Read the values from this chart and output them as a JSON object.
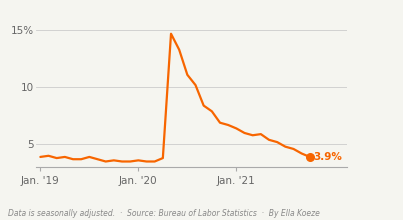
{
  "line_color": "#F76500",
  "background_color": "#f5f5f0",
  "x_tick_labels": [
    "Jan. '19",
    "Jan. '20",
    "Jan. '21"
  ],
  "x_tick_positions": [
    0,
    12,
    24
  ],
  "y_ticks": [
    5,
    10,
    15
  ],
  "y_tick_labels": [
    "5",
    "10",
    "15%"
  ],
  "end_label": "3.9%",
  "end_label_color": "#F76500",
  "footer": "Data is seasonally adjusted.  ·  Source: Bureau of Labor Statistics  ·  By Ella Koeze",
  "unemployment_data": [
    3.9,
    4.0,
    3.8,
    3.9,
    3.7,
    3.7,
    3.9,
    3.7,
    3.5,
    3.6,
    3.5,
    3.5,
    3.6,
    3.5,
    3.5,
    3.8,
    14.7,
    13.3,
    11.1,
    10.2,
    8.4,
    7.9,
    6.9,
    6.7,
    6.4,
    6.0,
    5.8,
    5.9,
    5.4,
    5.2,
    4.8,
    4.6,
    4.2,
    3.9
  ],
  "ylim": [
    3.0,
    16.5
  ],
  "xlim_start": -0.5,
  "xlim_end_extra": 4.5,
  "line_width": 1.6,
  "dot_size": 30,
  "footer_fontsize": 5.5,
  "tick_fontsize": 7.5,
  "label_fontsize": 7.5
}
